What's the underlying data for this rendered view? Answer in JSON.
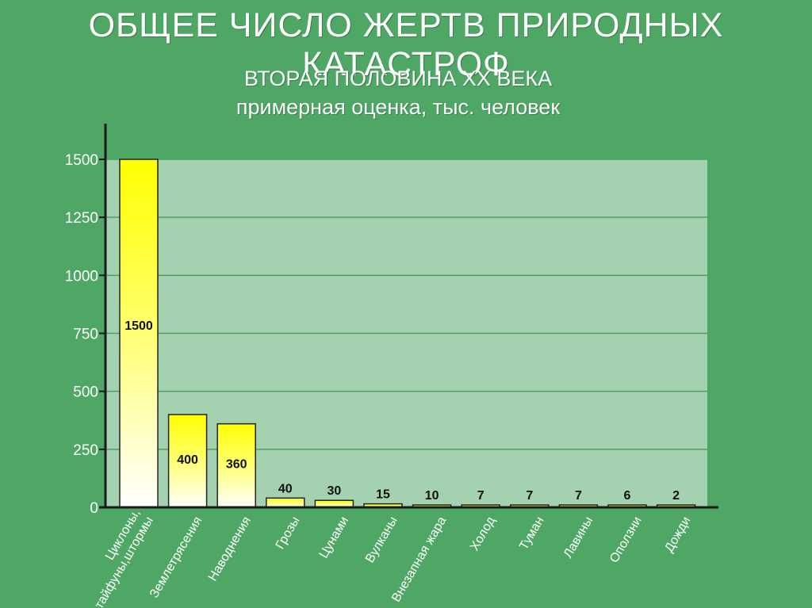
{
  "chart_data": {
    "type": "bar",
    "title": "ОБЩЕЕ ЧИСЛО ЖЕРТВ ПРИРОДНЫХ КАТАСТРОФ",
    "subtitle": [
      "ВТОРАЯ ПОЛОВИНА XX ВЕКА",
      "примерная оценка, тыс. человек"
    ],
    "categories": [
      "Циклоны, тайфуны,штормы",
      "Землетрясения",
      "Наводнения",
      "Грозы",
      "Цунами",
      "Вулканы",
      "Внезапная жара",
      "Холод",
      "Туман",
      "Лавины",
      "Оползни",
      "Дожди"
    ],
    "category_lines": [
      [
        "Циклоны,",
        "тайфуны,штормы"
      ],
      [
        "Землетрясения"
      ],
      [
        "Наводнения"
      ],
      [
        "Грозы"
      ],
      [
        "Цунами"
      ],
      [
        "Вулканы"
      ],
      [
        "Внезапная жара"
      ],
      [
        "Холод"
      ],
      [
        "Туман"
      ],
      [
        "Лавины"
      ],
      [
        "Оползни"
      ],
      [
        "Дожди"
      ]
    ],
    "values": [
      1500,
      400,
      360,
      40,
      30,
      15,
      10,
      7,
      7,
      7,
      6,
      2
    ],
    "value_labels": [
      "1500",
      "400",
      "360",
      "40",
      "30",
      "15",
      "10",
      "7",
      "7",
      "7",
      "6",
      "2"
    ],
    "yticks": [
      0,
      250,
      500,
      750,
      1000,
      1250,
      1500
    ],
    "ylim": [
      0,
      1500
    ],
    "grid": true,
    "colors": {
      "background": "#4fa765",
      "plot_area": "#a4d2b0",
      "gridline": "#4f9f63",
      "bar_top": "#ffff00",
      "bar_bottom": "#ffffff",
      "bar_border": "#222222"
    }
  }
}
